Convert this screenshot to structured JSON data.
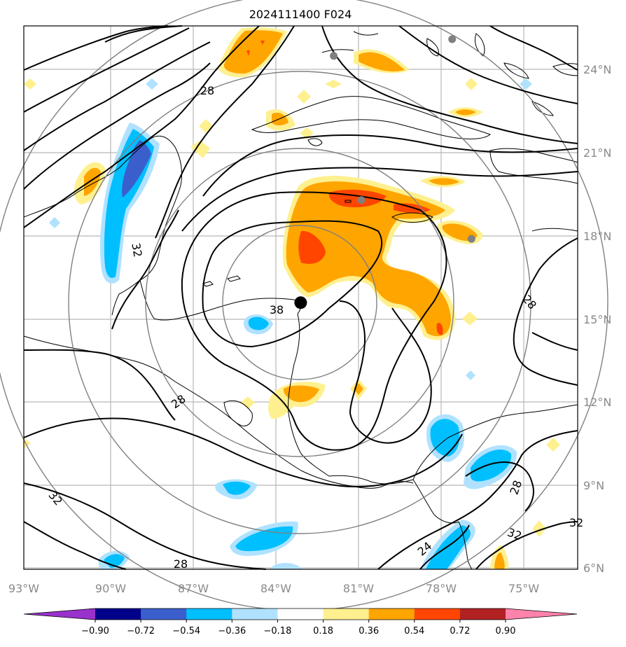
{
  "title": "2024111400 F024",
  "lon_labels": [
    "93°W",
    "90°W",
    "87°W",
    "84°W",
    "81°W",
    "78°W",
    "75°W"
  ],
  "lat_labels": [
    "24°N",
    "21°N",
    "18°N",
    "15°N",
    "12°N",
    "9°N",
    "6°N"
  ],
  "colorbar": {
    "tick_labels": [
      "−0.90",
      "−0.72",
      "−0.54",
      "−0.36",
      "−0.18",
      "0.18",
      "0.36",
      "0.54",
      "0.72",
      "0.90"
    ],
    "colors": [
      "#9932cc",
      "#00008b",
      "#3a5fcd",
      "#00bfff",
      "#b0e2ff",
      "#ffffff",
      "#fff08f",
      "#ffa500",
      "#ff4500",
      "#b22222",
      "#ff82ab"
    ]
  },
  "contour_labels": [
    "28",
    "32",
    "38",
    "28",
    "28",
    "28",
    "32",
    "24",
    "32",
    "28",
    "32"
  ],
  "storm_center": {
    "lon": -83.1,
    "lat": 15.6
  },
  "gray_markers": [
    {
      "lon": -81.9,
      "lat": 24.5
    },
    {
      "lon": -77.6,
      "lat": 25.1
    },
    {
      "lon": -80.9,
      "lat": 19.3
    },
    {
      "lon": -76.9,
      "lat": 17.9
    }
  ]
}
